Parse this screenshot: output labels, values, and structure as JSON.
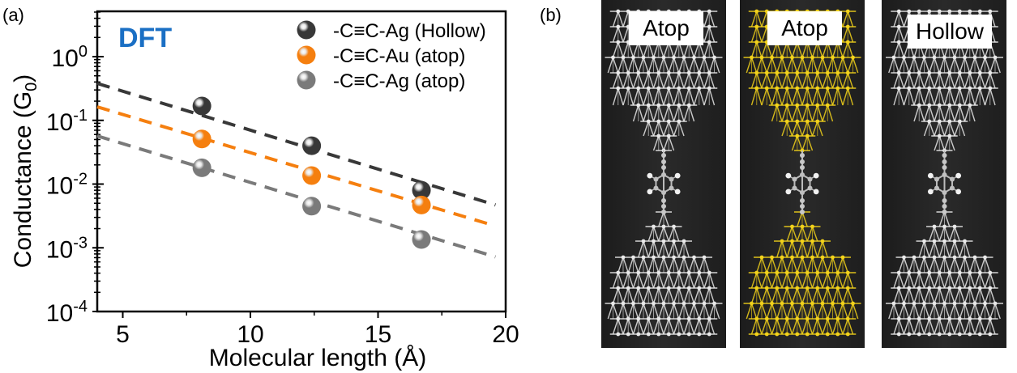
{
  "figure": {
    "panel_a_label": "(a)",
    "panel_b_label": "(b)"
  },
  "chart_data": {
    "type": "scatter",
    "annotation": "DFT",
    "annotation_color": "#1A6FC4",
    "xlabel": "Molecular length (Å)",
    "ylabel": "Conductance (G0)",
    "xlim": [
      4,
      20
    ],
    "ylim": [
      0.0001,
      5
    ],
    "yscale": "log",
    "xticks": [
      5,
      10,
      15,
      20
    ],
    "xtick_labels": [
      "5",
      "10",
      "15",
      "20"
    ],
    "yticks": [
      0.0001,
      0.001,
      0.01,
      0.1,
      1
    ],
    "ytick_labels": [
      {
        "base": "10",
        "exp": "-4"
      },
      {
        "base": "10",
        "exp": "-3"
      },
      {
        "base": "10",
        "exp": "-2"
      },
      {
        "base": "10",
        "exp": "-1"
      },
      {
        "base": "10",
        "exp": "0"
      }
    ],
    "legend_position": "top-right",
    "series": [
      {
        "name": "-C≡C-Ag (Hollow)",
        "color": "#383838",
        "x": [
          8.1,
          12.4,
          16.7
        ],
        "y": [
          0.168,
          0.04,
          0.008
        ],
        "fit": {
          "x": [
            4,
            19.6
          ],
          "y": [
            0.38,
            0.0047
          ]
        }
      },
      {
        "name": "-C≡C-Au (atop)",
        "color": "#F57F0F",
        "x": [
          8.1,
          12.4,
          16.7
        ],
        "y": [
          0.051,
          0.0136,
          0.0047
        ],
        "fit": {
          "x": [
            4,
            19.6
          ],
          "y": [
            0.163,
            0.0022
          ]
        }
      },
      {
        "name": "-C≡C-Ag (atop)",
        "color": "#7A7A7A",
        "x": [
          8.1,
          12.4,
          16.7
        ],
        "y": [
          0.018,
          0.0045,
          0.00135
        ],
        "fit": {
          "x": [
            4,
            19.6
          ],
          "y": [
            0.057,
            0.00072
          ]
        }
      }
    ]
  },
  "structures": [
    {
      "label": "Atop",
      "metal_color": "#E8E8E8"
    },
    {
      "label": "Atop",
      "metal_color": "#F2D21A"
    },
    {
      "label": "Hollow",
      "metal_color": "#E8E8E8"
    }
  ]
}
